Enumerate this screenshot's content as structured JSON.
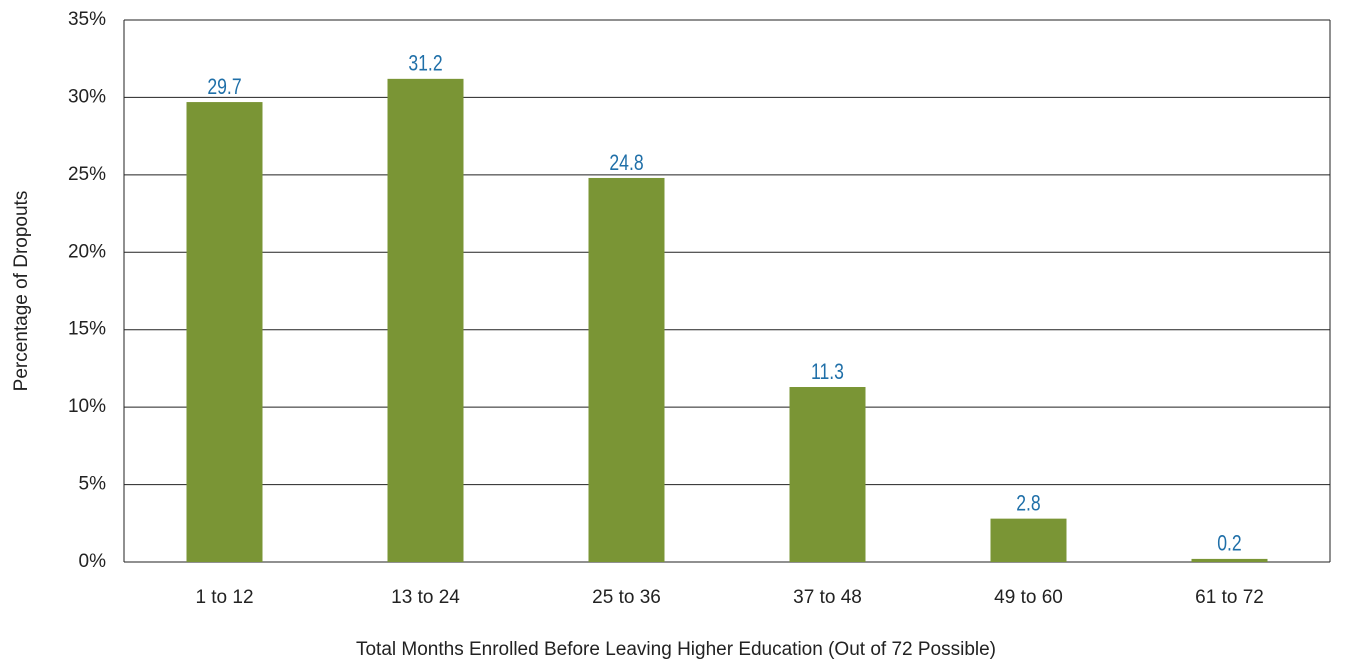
{
  "chart_data": {
    "type": "bar",
    "y_label": "Percentage of Dropouts",
    "x_label": "Total Months Enrolled Before Leaving Higher Education (Out of 72 Possible)",
    "categories": [
      "1 to 12",
      "13 to 24",
      "25 to 36",
      "37 to 48",
      "49 to 60",
      "61 to 72"
    ],
    "values": [
      29.7,
      31.2,
      24.8,
      11.3,
      2.8,
      0.2
    ],
    "color": "#7a9535",
    "label_color": "#1f6fa8",
    "ylim": [
      0,
      35
    ],
    "yticks": [
      {
        "value": 0,
        "label": "0%"
      },
      {
        "value": 5,
        "label": "5%"
      },
      {
        "value": 10,
        "label": "10%"
      },
      {
        "value": 15,
        "label": "15%"
      },
      {
        "value": 20,
        "label": "20%"
      },
      {
        "value": 25,
        "label": "25%"
      },
      {
        "value": 30,
        "label": "30%"
      },
      {
        "value": 35,
        "label": "35%"
      }
    ],
    "grid": true
  }
}
